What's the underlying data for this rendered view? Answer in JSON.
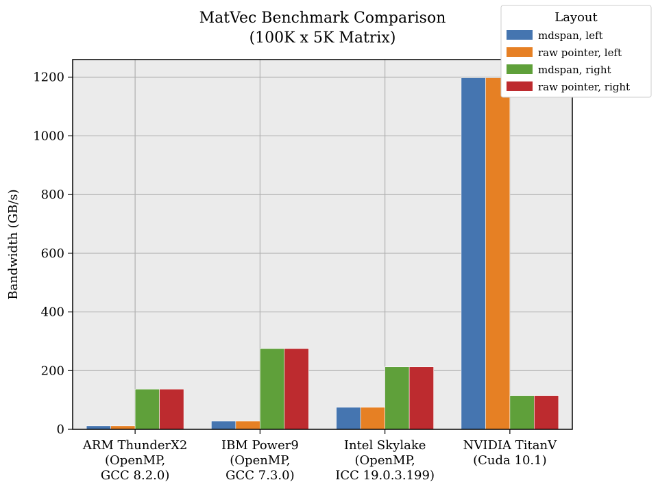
{
  "chart_data": {
    "type": "bar",
    "title": [
      "MatVec Benchmark Comparison",
      "(100K x 5K Matrix)"
    ],
    "xlabel": "",
    "ylabel": "Bandwidth (GB/s)",
    "ylim": [
      0,
      1260
    ],
    "yticks": [
      0,
      200,
      400,
      600,
      800,
      1000,
      1200
    ],
    "grid": true,
    "categories": [
      [
        "ARM ThunderX2",
        "(OpenMP,",
        "GCC 8.2.0)"
      ],
      [
        "IBM Power9",
        "(OpenMP,",
        "GCC 7.3.0)"
      ],
      [
        "Intel Skylake",
        "(OpenMP,",
        "ICC 19.0.3.199)"
      ],
      [
        "NVIDIA TitanV",
        "(Cuda 10.1)"
      ]
    ],
    "legend": {
      "title": "Layout",
      "placement": "top-right"
    },
    "series": [
      {
        "name": "mdspan, left",
        "color": "#4575b0",
        "values": [
          12,
          28,
          75,
          1198
        ]
      },
      {
        "name": "raw pointer, left",
        "color": "#e68024",
        "values": [
          12,
          28,
          75,
          1198
        ]
      },
      {
        "name": "mdspan, right",
        "color": "#5fa03a",
        "values": [
          137,
          275,
          213,
          115
        ]
      },
      {
        "name": "raw pointer, right",
        "color": "#bd2b2f",
        "values": [
          137,
          275,
          213,
          115
        ]
      }
    ]
  }
}
